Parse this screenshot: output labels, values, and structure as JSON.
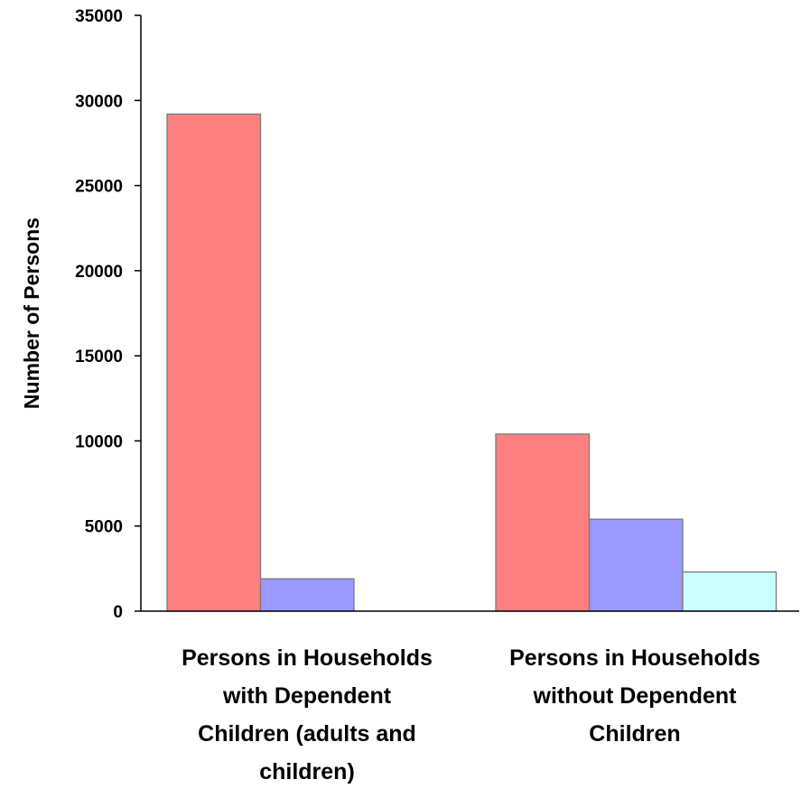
{
  "chart_data": {
    "type": "bar",
    "title": "",
    "xlabel": "",
    "ylabel": "Number of Persons",
    "ylim": [
      0,
      35000
    ],
    "yticks": [
      "0",
      "5000",
      "10000",
      "15000",
      "20000",
      "25000",
      "30000",
      "35000"
    ],
    "categories": [
      "Persons in Households with Dependent Children (adults and children)",
      "Persons in Households without Dependent Children"
    ],
    "category_lines": [
      [
        "Persons in Households",
        "with Dependent",
        "Children (adults and",
        "children)"
      ],
      [
        "Persons in Households",
        "without Dependent",
        "Children"
      ]
    ],
    "series": [
      {
        "values": [
          29200,
          10400
        ],
        "color": "#ff8080"
      },
      {
        "values": [
          1900,
          5400
        ],
        "color": "#9999ff"
      },
      {
        "values": [
          null,
          2300
        ],
        "color": "#ccffff"
      }
    ],
    "grid": false,
    "legend": "none"
  }
}
